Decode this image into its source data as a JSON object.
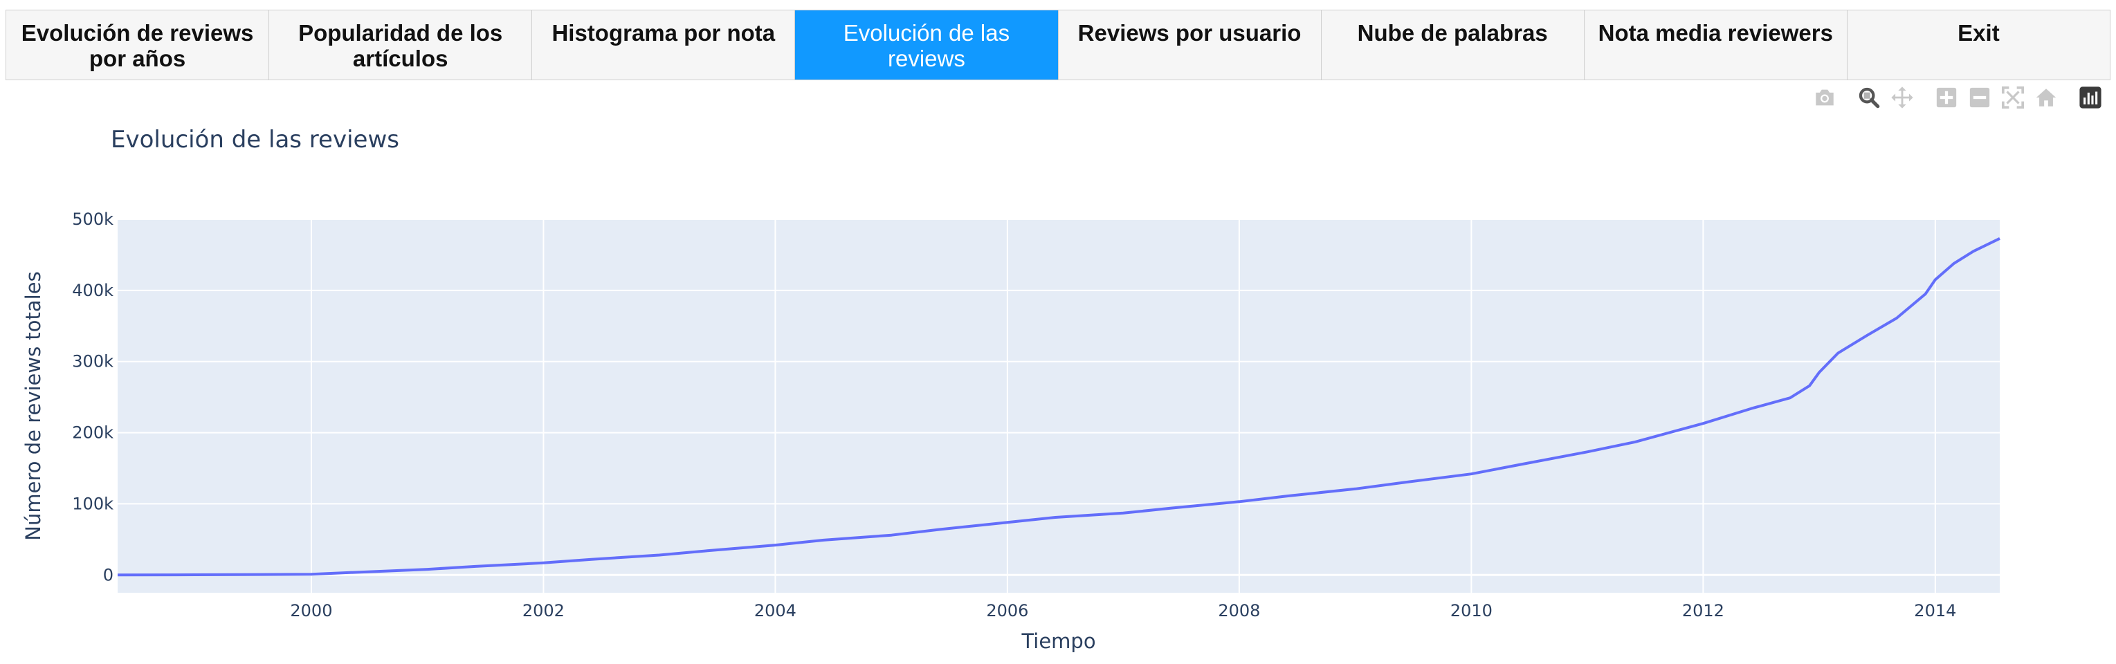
{
  "tabs": [
    {
      "label": "Evolución de reviews por años",
      "active": false
    },
    {
      "label": "Popularidad de los artículos",
      "active": false
    },
    {
      "label": "Histograma por nota",
      "active": false
    },
    {
      "label": "Evolución de las reviews",
      "active": true
    },
    {
      "label": "Reviews por usuario",
      "active": false
    },
    {
      "label": "Nube de palabras",
      "active": false
    },
    {
      "label": "Nota media reviewers",
      "active": false
    },
    {
      "label": "Exit",
      "active": false
    }
  ],
  "modebar": {
    "icons": [
      "camera-icon",
      "zoom-icon",
      "pan-icon",
      "zoom-in-icon",
      "zoom-out-icon",
      "autoscale-icon",
      "home-icon",
      "plotly-logo-icon"
    ],
    "colors": {
      "inactive": "#c8c8c8",
      "active": "#555555",
      "logo": "#3a3a3a"
    }
  },
  "chart_data": {
    "type": "line",
    "title": "Evolución de las reviews",
    "xlabel": "Tiempo",
    "ylabel": "Número de reviews totales",
    "xlim": [
      "1998-05-01",
      "2014-07-23"
    ],
    "ylim": [
      -25000,
      500000
    ],
    "grid": true,
    "colors": {
      "line": "#636efa",
      "plot_bg": "#e5ecf6",
      "grid": "#ffffff",
      "text": "#2a3f5f"
    },
    "x_ticks": [
      {
        "date": "2000-01-01",
        "label": "2000"
      },
      {
        "date": "2002-01-01",
        "label": "2002"
      },
      {
        "date": "2004-01-01",
        "label": "2004"
      },
      {
        "date": "2006-01-01",
        "label": "2006"
      },
      {
        "date": "2008-01-01",
        "label": "2008"
      },
      {
        "date": "2010-01-01",
        "label": "2010"
      },
      {
        "date": "2012-01-01",
        "label": "2012"
      },
      {
        "date": "2014-01-01",
        "label": "2014"
      }
    ],
    "y_ticks": [
      {
        "value": 0,
        "label": "0"
      },
      {
        "value": 100000,
        "label": "100k"
      },
      {
        "value": 200000,
        "label": "200k"
      },
      {
        "value": 300000,
        "label": "300k"
      },
      {
        "value": 400000,
        "label": "400k"
      },
      {
        "value": 500000,
        "label": "500k"
      }
    ],
    "series": [
      {
        "x": [
          "1998-05-01",
          "1999-01-01",
          "1999-06-01",
          "2000-01-01",
          "2000-06-01",
          "2001-01-01",
          "2001-06-01",
          "2002-01-01",
          "2002-06-01",
          "2003-01-01",
          "2003-06-01",
          "2004-01-01",
          "2004-06-01",
          "2005-01-01",
          "2005-06-01",
          "2006-01-01",
          "2006-06-01",
          "2007-01-01",
          "2007-06-01",
          "2008-01-01",
          "2008-06-01",
          "2009-01-01",
          "2009-06-01",
          "2010-01-01",
          "2010-06-01",
          "2011-01-01",
          "2011-06-01",
          "2012-01-01",
          "2012-06-01",
          "2012-10-01",
          "2012-12-01",
          "2013-01-01",
          "2013-03-01",
          "2013-06-01",
          "2013-09-01",
          "2013-12-01",
          "2014-01-01",
          "2014-03-01",
          "2014-05-01",
          "2014-07-23"
        ],
        "y": [
          0,
          300,
          600,
          1000,
          4000,
          8000,
          12000,
          17000,
          22000,
          28000,
          34000,
          42000,
          49000,
          56000,
          64000,
          74000,
          81000,
          87000,
          94000,
          103000,
          111000,
          121000,
          130000,
          142000,
          155000,
          173000,
          187000,
          213000,
          234000,
          249000,
          266000,
          285000,
          312000,
          337000,
          361000,
          395000,
          415000,
          438000,
          455000,
          473000
        ]
      }
    ]
  }
}
